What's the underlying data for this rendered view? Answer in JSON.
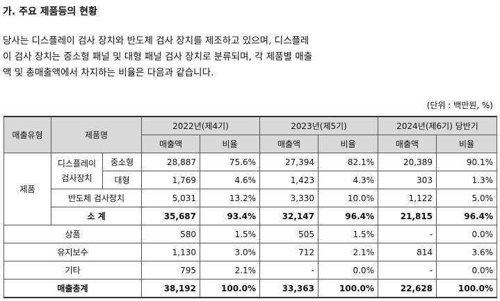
{
  "heading": "가. 주요 제품등의 현황",
  "paragraph": [
    "당사는 디스플레이 검사 장치와 반도체 검사 장치를 제조하고 있으며, 디스플레",
    "이 검사 장치는 중소형 패널 및 대형 패널 검사 장치로 분류되며, 각 제품별 매출",
    "액 및 총매출액에서 차지하는 비율은 다음과 같습니다."
  ],
  "unit_note": "(단위 : 백만원, %)",
  "table": {
    "headers": {
      "sales_type": "매출유형",
      "product": "제품명",
      "years": [
        "2022년(제4기)",
        "2023년(제5기)",
        "2024년(제6기) 당반기"
      ],
      "sales": "매출액",
      "ratio": "비율"
    },
    "rows": {
      "product_group": "제품",
      "display_line1": "디스플레이",
      "display_line2": "검사장치",
      "small": {
        "label": "중소형",
        "values": [
          "28,887",
          "75.6%",
          "27,394",
          "82.1%",
          "20,389",
          "90.1%"
        ]
      },
      "large": {
        "label": "대형",
        "values": [
          "1,769",
          "4.6%",
          "1,423",
          "4.3%",
          "303",
          "1.3%"
        ]
      },
      "semi": {
        "label": "반도체 검사장치",
        "values": [
          "5,031",
          "13.2%",
          "3,330",
          "10.0%",
          "1,122",
          "5.0%"
        ]
      },
      "subtotal": {
        "label": "소 계",
        "values": [
          "35,687",
          "93.4%",
          "32,147",
          "96.4%",
          "21,815",
          "96.4%"
        ]
      },
      "goods": {
        "label": "상품",
        "values": [
          "580",
          "1.5%",
          "505",
          "1.5%",
          "-",
          "0.0%"
        ]
      },
      "maintenance": {
        "label": "유지보수",
        "values": [
          "1,130",
          "3.0%",
          "712",
          "2.1%",
          "814",
          "3.6%"
        ]
      },
      "other": {
        "label": "기타",
        "values": [
          "795",
          "2.1%",
          "-",
          "0.0%",
          "-",
          "0.0%"
        ]
      },
      "total": {
        "label": "매출총계",
        "values": [
          "38,192",
          "100.0%",
          "33,363",
          "100.0%",
          "22,628",
          "100.0%"
        ]
      }
    }
  }
}
